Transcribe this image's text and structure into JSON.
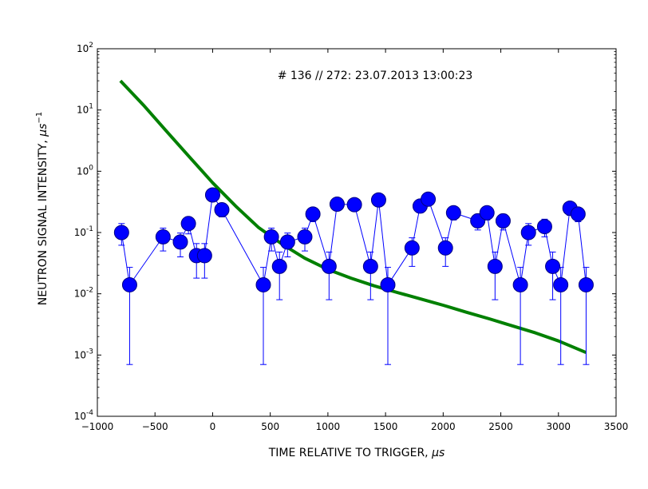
{
  "chart_data": {
    "type": "scatter",
    "title": "",
    "annotation": "# 136 // 272: 23.07.2013 13:00:23",
    "xlabel": "TIME RELATIVE TO TRIGGER, ",
    "xlabel_unit": "μs",
    "ylabel": "NEUTRON SIGNAL INTENSITY, ",
    "ylabel_unit": "μs",
    "ylabel_unit_exp": "−1",
    "xlim": [
      -1000,
      3500
    ],
    "ylim": [
      0.0001,
      100
    ],
    "yscale": "log",
    "grid": false,
    "x_ticks": [
      -1000,
      -500,
      0,
      500,
      1000,
      1500,
      2000,
      2500,
      3000,
      3500
    ],
    "x_tick_labels": [
      "−1000",
      "−500",
      "0",
      "500",
      "1000",
      "1500",
      "2000",
      "2500",
      "3000",
      "3500"
    ],
    "y_ticks": [
      {
        "value": 0.0001,
        "base": "10",
        "exp": "-4"
      },
      {
        "value": 0.001,
        "base": "10",
        "exp": "-3"
      },
      {
        "value": 0.01,
        "base": "10",
        "exp": "-2"
      },
      {
        "value": 0.1,
        "base": "10",
        "exp": "-1"
      },
      {
        "value": 1,
        "base": "10",
        "exp": "0"
      },
      {
        "value": 10,
        "base": "10",
        "exp": "1"
      },
      {
        "value": 100,
        "base": "10",
        "exp": "2"
      }
    ],
    "series": [
      {
        "type": "scatter-errorbar-line",
        "color": "#0000ff",
        "marker_edge": "#000080",
        "points": [
          {
            "x": -790,
            "y": 0.1,
            "ylo": 0.062,
            "yhi": 0.14
          },
          {
            "x": -720,
            "y": 0.014,
            "ylo": 0.0007,
            "yhi": 0.027
          },
          {
            "x": -430,
            "y": 0.085,
            "ylo": 0.05,
            "yhi": 0.118
          },
          {
            "x": -280,
            "y": 0.07,
            "ylo": 0.04,
            "yhi": 0.098
          },
          {
            "x": -210,
            "y": 0.14,
            "ylo": 0.095,
            "yhi": 0.18
          },
          {
            "x": -140,
            "y": 0.042,
            "ylo": 0.018,
            "yhi": 0.066
          },
          {
            "x": -70,
            "y": 0.042,
            "ylo": 0.018,
            "yhi": 0.066
          },
          {
            "x": 0,
            "y": 0.41,
            "ylo": 0.33,
            "yhi": 0.48
          },
          {
            "x": 80,
            "y": 0.235,
            "ylo": 0.18,
            "yhi": 0.29
          },
          {
            "x": 440,
            "y": 0.014,
            "ylo": 0.0007,
            "yhi": 0.027
          },
          {
            "x": 510,
            "y": 0.085,
            "ylo": 0.05,
            "yhi": 0.118
          },
          {
            "x": 580,
            "y": 0.028,
            "ylo": 0.008,
            "yhi": 0.048
          },
          {
            "x": 650,
            "y": 0.07,
            "ylo": 0.04,
            "yhi": 0.098
          },
          {
            "x": 800,
            "y": 0.085,
            "ylo": 0.05,
            "yhi": 0.118
          },
          {
            "x": 870,
            "y": 0.2,
            "ylo": 0.15,
            "yhi": 0.25
          },
          {
            "x": 1010,
            "y": 0.028,
            "ylo": 0.008,
            "yhi": 0.048
          },
          {
            "x": 1080,
            "y": 0.29,
            "ylo": 0.23,
            "yhi": 0.35
          },
          {
            "x": 1230,
            "y": 0.285,
            "ylo": 0.23,
            "yhi": 0.34
          },
          {
            "x": 1370,
            "y": 0.028,
            "ylo": 0.008,
            "yhi": 0.048
          },
          {
            "x": 1440,
            "y": 0.34,
            "ylo": 0.27,
            "yhi": 0.4
          },
          {
            "x": 1520,
            "y": 0.014,
            "ylo": 0.0007,
            "yhi": 0.027
          },
          {
            "x": 1730,
            "y": 0.056,
            "ylo": 0.028,
            "yhi": 0.082
          },
          {
            "x": 1800,
            "y": 0.27,
            "ylo": 0.21,
            "yhi": 0.33
          },
          {
            "x": 1870,
            "y": 0.35,
            "ylo": 0.28,
            "yhi": 0.42
          },
          {
            "x": 2020,
            "y": 0.056,
            "ylo": 0.028,
            "yhi": 0.082
          },
          {
            "x": 2090,
            "y": 0.21,
            "ylo": 0.16,
            "yhi": 0.26
          },
          {
            "x": 2300,
            "y": 0.155,
            "ylo": 0.11,
            "yhi": 0.2
          },
          {
            "x": 2380,
            "y": 0.21,
            "ylo": 0.16,
            "yhi": 0.26
          },
          {
            "x": 2450,
            "y": 0.028,
            "ylo": 0.008,
            "yhi": 0.048
          },
          {
            "x": 2520,
            "y": 0.155,
            "ylo": 0.11,
            "yhi": 0.2
          },
          {
            "x": 2670,
            "y": 0.014,
            "ylo": 0.0007,
            "yhi": 0.027
          },
          {
            "x": 2740,
            "y": 0.1,
            "ylo": 0.062,
            "yhi": 0.14
          },
          {
            "x": 2880,
            "y": 0.125,
            "ylo": 0.085,
            "yhi": 0.165
          },
          {
            "x": 2950,
            "y": 0.028,
            "ylo": 0.008,
            "yhi": 0.048
          },
          {
            "x": 3020,
            "y": 0.014,
            "ylo": 0.0007,
            "yhi": 0.027
          },
          {
            "x": 3100,
            "y": 0.25,
            "ylo": 0.19,
            "yhi": 0.31
          },
          {
            "x": 3170,
            "y": 0.2,
            "ylo": 0.15,
            "yhi": 0.25
          },
          {
            "x": 3240,
            "y": 0.014,
            "ylo": 0.0007,
            "yhi": 0.027
          }
        ]
      },
      {
        "type": "line",
        "color": "#008000",
        "x": [
          -800,
          -600,
          -400,
          -200,
          0,
          200,
          400,
          600,
          800,
          1000,
          1200,
          1400,
          1600,
          1800,
          2000,
          2200,
          2400,
          2600,
          2800,
          3000,
          3240
        ],
        "y": [
          30,
          12,
          4.5,
          1.7,
          0.65,
          0.27,
          0.12,
          0.065,
          0.038,
          0.025,
          0.018,
          0.0135,
          0.0105,
          0.0083,
          0.0065,
          0.005,
          0.0039,
          0.003,
          0.0023,
          0.0017,
          0.0011
        ]
      }
    ]
  }
}
